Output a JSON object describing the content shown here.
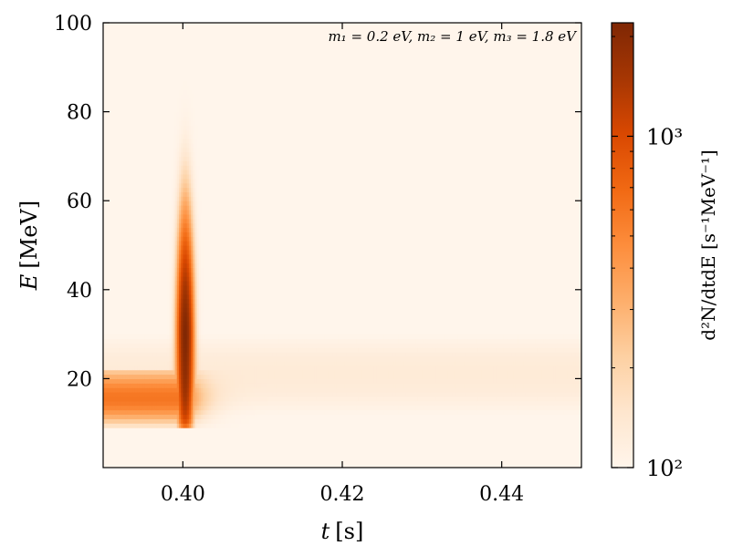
{
  "chart_data": {
    "type": "heatmap",
    "title": "",
    "annotation": "m₁ = 0.2 eV,  m₂ = 1 eV,  m₃ = 1.8 eV",
    "xlabel": {
      "symbol": "t",
      "unit": "[s]"
    },
    "ylabel": {
      "symbol": "E",
      "unit": "[MeV]"
    },
    "xlim": [
      0.39,
      0.45
    ],
    "ylim": [
      0,
      100
    ],
    "xticks": [
      0.4,
      0.42,
      0.44
    ],
    "xtick_labels": [
      "0.40",
      "0.42",
      "0.44"
    ],
    "yticks": [
      20,
      40,
      60,
      80,
      100
    ],
    "ytick_labels": [
      "20",
      "40",
      "60",
      "80",
      "100"
    ],
    "colorbar": {
      "label": "d²N/dtdE [s⁻¹MeV⁻¹]",
      "scale": "log",
      "range": [
        100,
        2200
      ],
      "ticks": [
        {
          "value": 100,
          "label": "10²"
        },
        {
          "value": 1000,
          "label": "10³"
        }
      ],
      "colormap": "Oranges",
      "colors": [
        "#fff5eb",
        "#fee6ce",
        "#fdd0a2",
        "#fdae6b",
        "#fd8d3c",
        "#f16913",
        "#d94801",
        "#a63603",
        "#7f2704"
      ]
    },
    "features": [
      {
        "name": "burst",
        "t_center": 0.4003,
        "t_width": 0.0008,
        "E_range": [
          9,
          92
        ],
        "E_peak": 30,
        "peak_value": 2200
      },
      {
        "name": "steady band",
        "t_range": [
          0.39,
          0.45
        ],
        "E_range": [
          14,
          30
        ],
        "E_peak": 21,
        "peak_value": 130
      }
    ],
    "background_value": 100,
    "grid": false
  }
}
